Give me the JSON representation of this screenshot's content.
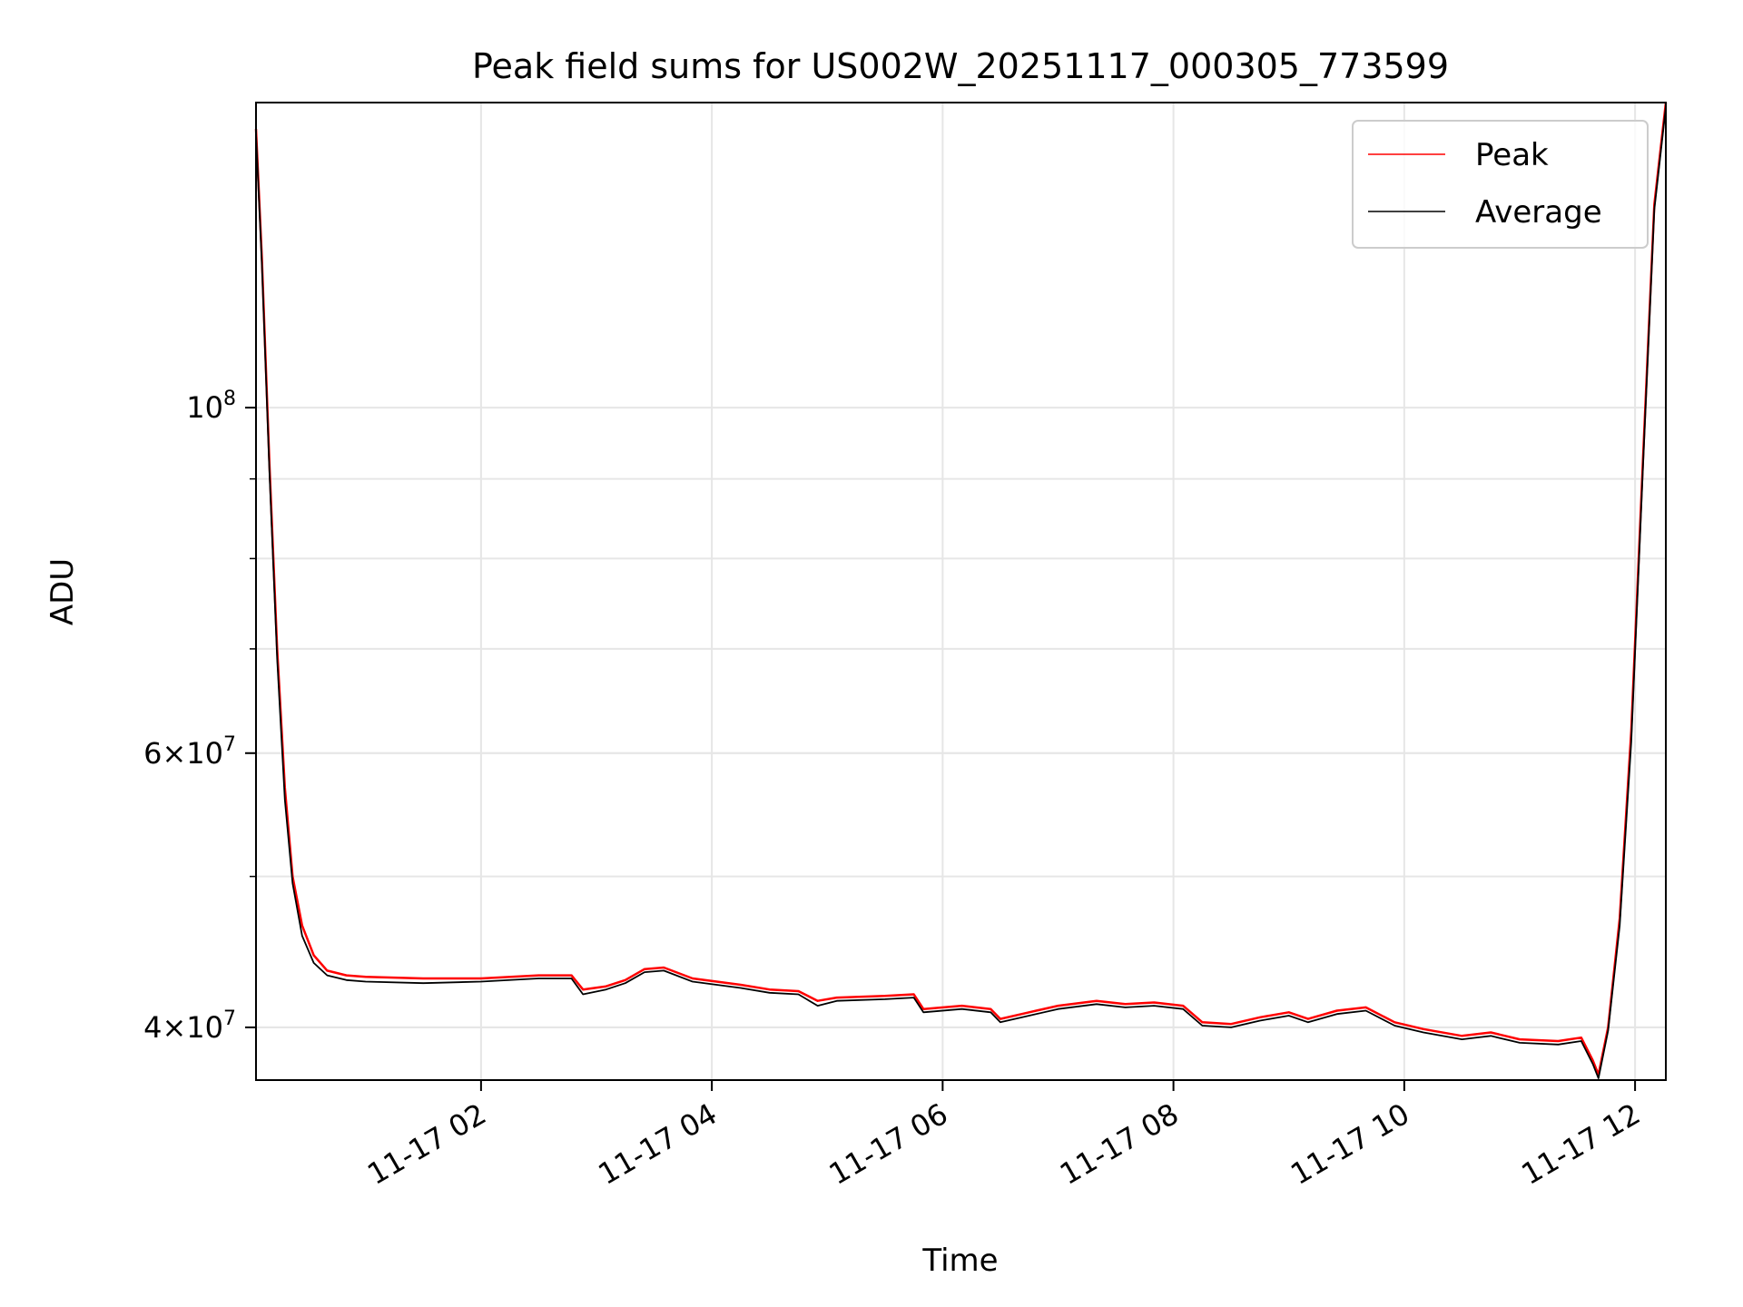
{
  "chart_data": {
    "type": "line",
    "title": "Peak field sums for US002W_20251117_000305_773599",
    "xlabel": "Time",
    "ylabel": "ADU",
    "y_scale": "log",
    "x_range": [
      "11-17 00:03",
      "11-17 12:16"
    ],
    "ylim": [
      37000000,
      157000000
    ],
    "x_ticks": [
      {
        "t": "11-17 02:00",
        "label": "11-17 02"
      },
      {
        "t": "11-17 04:00",
        "label": "11-17 04"
      },
      {
        "t": "11-17 06:00",
        "label": "11-17 06"
      },
      {
        "t": "11-17 08:00",
        "label": "11-17 08"
      },
      {
        "t": "11-17 10:00",
        "label": "11-17 10"
      },
      {
        "t": "11-17 12:00",
        "label": "11-17 12"
      }
    ],
    "y_major_ticks": [
      {
        "v": 40000000,
        "base": "4×10",
        "exp": "7"
      },
      {
        "v": 60000000,
        "base": "6×10",
        "exp": "7"
      },
      {
        "v": 100000000,
        "base": "10",
        "exp": "8"
      }
    ],
    "y_minor_ticks": [
      40000000,
      50000000,
      60000000,
      70000000,
      80000000,
      90000000
    ],
    "grid": true,
    "legend": {
      "position": "top-right"
    },
    "series": [
      {
        "name": "Peak",
        "color": "#ff0000",
        "points": [
          [
            "11-17 00:03",
            151000000
          ],
          [
            "11-17 00:06",
            125000000
          ],
          [
            "11-17 00:10",
            92000000
          ],
          [
            "11-17 00:14",
            70000000
          ],
          [
            "11-17 00:18",
            57000000
          ],
          [
            "11-17 00:22",
            50000000
          ],
          [
            "11-17 00:27",
            46500000
          ],
          [
            "11-17 00:33",
            44500000
          ],
          [
            "11-17 00:40",
            43500000
          ],
          [
            "11-17 00:50",
            43200000
          ],
          [
            "11-17 01:00",
            43100000
          ],
          [
            "11-17 01:30",
            43000000
          ],
          [
            "11-17 02:00",
            43000000
          ],
          [
            "11-17 02:30",
            43200000
          ],
          [
            "11-17 02:47",
            43200000
          ],
          [
            "11-17 02:53",
            42300000
          ],
          [
            "11-17 03:05",
            42500000
          ],
          [
            "11-17 03:15",
            42900000
          ],
          [
            "11-17 03:25",
            43600000
          ],
          [
            "11-17 03:35",
            43700000
          ],
          [
            "11-17 03:50",
            43000000
          ],
          [
            "11-17 04:15",
            42600000
          ],
          [
            "11-17 04:30",
            42300000
          ],
          [
            "11-17 04:45",
            42200000
          ],
          [
            "11-17 04:55",
            41600000
          ],
          [
            "11-17 05:05",
            41800000
          ],
          [
            "11-17 05:30",
            41900000
          ],
          [
            "11-17 05:45",
            42000000
          ],
          [
            "11-17 05:50",
            41100000
          ],
          [
            "11-17 06:10",
            41300000
          ],
          [
            "11-17 06:25",
            41100000
          ],
          [
            "11-17 06:30",
            40500000
          ],
          [
            "11-17 06:45",
            40900000
          ],
          [
            "11-17 07:00",
            41300000
          ],
          [
            "11-17 07:20",
            41600000
          ],
          [
            "11-17 07:35",
            41400000
          ],
          [
            "11-17 07:50",
            41500000
          ],
          [
            "11-17 08:05",
            41300000
          ],
          [
            "11-17 08:15",
            40300000
          ],
          [
            "11-17 08:30",
            40200000
          ],
          [
            "11-17 08:45",
            40600000
          ],
          [
            "11-17 09:00",
            40900000
          ],
          [
            "11-17 09:10",
            40500000
          ],
          [
            "11-17 09:25",
            41000000
          ],
          [
            "11-17 09:40",
            41200000
          ],
          [
            "11-17 09:55",
            40300000
          ],
          [
            "11-17 10:10",
            39900000
          ],
          [
            "11-17 10:30",
            39500000
          ],
          [
            "11-17 10:45",
            39700000
          ],
          [
            "11-17 11:00",
            39300000
          ],
          [
            "11-17 11:20",
            39200000
          ],
          [
            "11-17 11:32",
            39400000
          ],
          [
            "11-17 11:38",
            38100000
          ],
          [
            "11-17 11:41",
            37300000
          ],
          [
            "11-17 11:46",
            40000000
          ],
          [
            "11-17 11:52",
            47000000
          ],
          [
            "11-17 11:58",
            62000000
          ],
          [
            "11-17 12:04",
            92000000
          ],
          [
            "11-17 12:10",
            135000000
          ],
          [
            "11-17 12:16",
            157000000
          ]
        ]
      },
      {
        "name": "Average",
        "color": "#000000",
        "points": [
          [
            "11-17 00:03",
            150000000
          ],
          [
            "11-17 00:06",
            124000000
          ],
          [
            "11-17 00:10",
            91000000
          ],
          [
            "11-17 00:14",
            69000000
          ],
          [
            "11-17 00:18",
            56000000
          ],
          [
            "11-17 00:22",
            49500000
          ],
          [
            "11-17 00:27",
            45800000
          ],
          [
            "11-17 00:33",
            44000000
          ],
          [
            "11-17 00:40",
            43200000
          ],
          [
            "11-17 00:50",
            42900000
          ],
          [
            "11-17 01:00",
            42800000
          ],
          [
            "11-17 01:30",
            42700000
          ],
          [
            "11-17 02:00",
            42800000
          ],
          [
            "11-17 02:30",
            43000000
          ],
          [
            "11-17 02:47",
            43000000
          ],
          [
            "11-17 02:53",
            42000000
          ],
          [
            "11-17 03:05",
            42300000
          ],
          [
            "11-17 03:15",
            42700000
          ],
          [
            "11-17 03:25",
            43400000
          ],
          [
            "11-17 03:35",
            43500000
          ],
          [
            "11-17 03:50",
            42800000
          ],
          [
            "11-17 04:15",
            42400000
          ],
          [
            "11-17 04:30",
            42100000
          ],
          [
            "11-17 04:45",
            42000000
          ],
          [
            "11-17 04:55",
            41300000
          ],
          [
            "11-17 05:05",
            41600000
          ],
          [
            "11-17 05:30",
            41700000
          ],
          [
            "11-17 05:45",
            41800000
          ],
          [
            "11-17 05:50",
            40900000
          ],
          [
            "11-17 06:10",
            41100000
          ],
          [
            "11-17 06:25",
            40900000
          ],
          [
            "11-17 06:30",
            40300000
          ],
          [
            "11-17 06:45",
            40700000
          ],
          [
            "11-17 07:00",
            41100000
          ],
          [
            "11-17 07:20",
            41400000
          ],
          [
            "11-17 07:35",
            41200000
          ],
          [
            "11-17 07:50",
            41300000
          ],
          [
            "11-17 08:05",
            41100000
          ],
          [
            "11-17 08:15",
            40100000
          ],
          [
            "11-17 08:30",
            40000000
          ],
          [
            "11-17 08:45",
            40400000
          ],
          [
            "11-17 09:00",
            40700000
          ],
          [
            "11-17 09:10",
            40300000
          ],
          [
            "11-17 09:25",
            40800000
          ],
          [
            "11-17 09:40",
            41000000
          ],
          [
            "11-17 09:55",
            40100000
          ],
          [
            "11-17 10:10",
            39700000
          ],
          [
            "11-17 10:30",
            39300000
          ],
          [
            "11-17 10:45",
            39500000
          ],
          [
            "11-17 11:00",
            39100000
          ],
          [
            "11-17 11:20",
            39000000
          ],
          [
            "11-17 11:32",
            39200000
          ],
          [
            "11-17 11:38",
            37900000
          ],
          [
            "11-17 11:41",
            37100000
          ],
          [
            "11-17 11:46",
            39800000
          ],
          [
            "11-17 11:52",
            46500000
          ],
          [
            "11-17 11:58",
            61000000
          ],
          [
            "11-17 12:04",
            91000000
          ],
          [
            "11-17 12:10",
            134000000
          ],
          [
            "11-17 12:16",
            156000000
          ]
        ]
      }
    ]
  }
}
